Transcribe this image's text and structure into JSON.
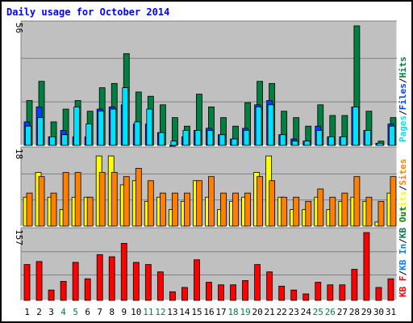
{
  "title": "Daily usage for October 2014",
  "colors": {
    "title": "#0000ff",
    "hits": "#008040",
    "files": "#0040ff",
    "pages": "#00e0ff",
    "visits": "#ffff00",
    "sites": "#ff8000",
    "kb_out": "#008040",
    "kb_in": "#0080ff",
    "kb_f": "#ff0000",
    "weekend_day": "#008040",
    "weekday": "#000000",
    "panel_bg": "#c0c0c0"
  },
  "chart_data": [
    {
      "type": "bar",
      "categories": [
        "1",
        "2",
        "3",
        "4",
        "5",
        "6",
        "7",
        "8",
        "9",
        "10",
        "11",
        "12",
        "13",
        "14",
        "15",
        "16",
        "17",
        "18",
        "19",
        "20",
        "21",
        "22",
        "23",
        "24",
        "25",
        "26",
        "27",
        "28",
        "29",
        "30",
        "31"
      ],
      "y_axis_label": "56",
      "ylim": [
        0,
        56
      ],
      "legend": [
        {
          "text": "Pages",
          "color_key": "pages"
        },
        {
          "text": "/",
          "color_key": "weekday"
        },
        {
          "text": "Files",
          "color_key": "files"
        },
        {
          "text": "/",
          "color_key": "weekday"
        },
        {
          "text": "Hits",
          "color_key": "hits"
        }
      ],
      "series": [
        {
          "name": "Hits",
          "color_key": "hits",
          "values": [
            21,
            30,
            11,
            17,
            21,
            16,
            27,
            29,
            43,
            25,
            23,
            19,
            13,
            9,
            24,
            18,
            13,
            9,
            20,
            30,
            29,
            16,
            13,
            9,
            19,
            14,
            14,
            56,
            16,
            2,
            13
          ]
        },
        {
          "name": "Files",
          "color_key": "files",
          "values": [
            11,
            18,
            4,
            7,
            4,
            4,
            17,
            18,
            19,
            10,
            10,
            6,
            0,
            4,
            7,
            8,
            5,
            3,
            8,
            19,
            21,
            5,
            3,
            2,
            9,
            4,
            4,
            18,
            7,
            1,
            10
          ]
        },
        {
          "name": "Pages",
          "color_key": "pages",
          "values": [
            9,
            13,
            4,
            5,
            18,
            10,
            16,
            17,
            27,
            11,
            17,
            6,
            2,
            7,
            7,
            7,
            5,
            3,
            7,
            18,
            19,
            5,
            2,
            2,
            7,
            4,
            4,
            18,
            7,
            1,
            9
          ]
        }
      ]
    },
    {
      "type": "bar",
      "categories": [
        "1",
        "2",
        "3",
        "4",
        "5",
        "6",
        "7",
        "8",
        "9",
        "10",
        "11",
        "12",
        "13",
        "14",
        "15",
        "16",
        "17",
        "18",
        "19",
        "20",
        "21",
        "22",
        "23",
        "24",
        "25",
        "26",
        "27",
        "28",
        "29",
        "30",
        "31"
      ],
      "y_axis_label": "18",
      "ylim": [
        0,
        18
      ],
      "legend": [
        {
          "text": "Visits",
          "color_key": "visits"
        },
        {
          "text": "/",
          "color_key": "weekday"
        },
        {
          "text": "Sites",
          "color_key": "sites"
        }
      ],
      "series": [
        {
          "name": "Visits",
          "color_key": "visits",
          "values": [
            7,
            13,
            7,
            4,
            7,
            7,
            17,
            17,
            10,
            11,
            6,
            7,
            4,
            6,
            11,
            7,
            4,
            6,
            7,
            13,
            17,
            7,
            4,
            4,
            7,
            4,
            6,
            7,
            6,
            1,
            8
          ]
        },
        {
          "name": "Sites",
          "color_key": "sites",
          "values": [
            8,
            12,
            8,
            13,
            13,
            7,
            13,
            13,
            12,
            14,
            11,
            8,
            8,
            8,
            11,
            12,
            8,
            8,
            8,
            12,
            11,
            7,
            7,
            6,
            9,
            7,
            8,
            12,
            7,
            6,
            12
          ]
        }
      ]
    },
    {
      "type": "bar",
      "categories": [
        "1",
        "2",
        "3",
        "4",
        "5",
        "6",
        "7",
        "8",
        "9",
        "10",
        "11",
        "12",
        "13",
        "14",
        "15",
        "16",
        "17",
        "18",
        "19",
        "20",
        "21",
        "22",
        "23",
        "24",
        "25",
        "26",
        "27",
        "28",
        "29",
        "30",
        "31"
      ],
      "y_axis_label": "157",
      "ylim": [
        0,
        157
      ],
      "legend": [
        {
          "text": "KB F",
          "color_key": "kb_f"
        },
        {
          "text": "/",
          "color_key": "weekday"
        },
        {
          "text": "KB In",
          "color_key": "kb_in"
        },
        {
          "text": "/",
          "color_key": "weekday"
        },
        {
          "text": "KB Out",
          "color_key": "kb_out"
        }
      ],
      "series": [
        {
          "name": "KB F",
          "color_key": "kb_f",
          "values": [
            83,
            90,
            24,
            44,
            88,
            50,
            106,
            101,
            132,
            88,
            83,
            66,
            20,
            30,
            94,
            42,
            36,
            36,
            46,
            83,
            66,
            33,
            24,
            15,
            42,
            36,
            36,
            72,
            157,
            30,
            50
          ]
        }
      ]
    }
  ],
  "weekend_days": [
    4,
    5,
    11,
    12,
    18,
    19,
    25,
    26
  ]
}
